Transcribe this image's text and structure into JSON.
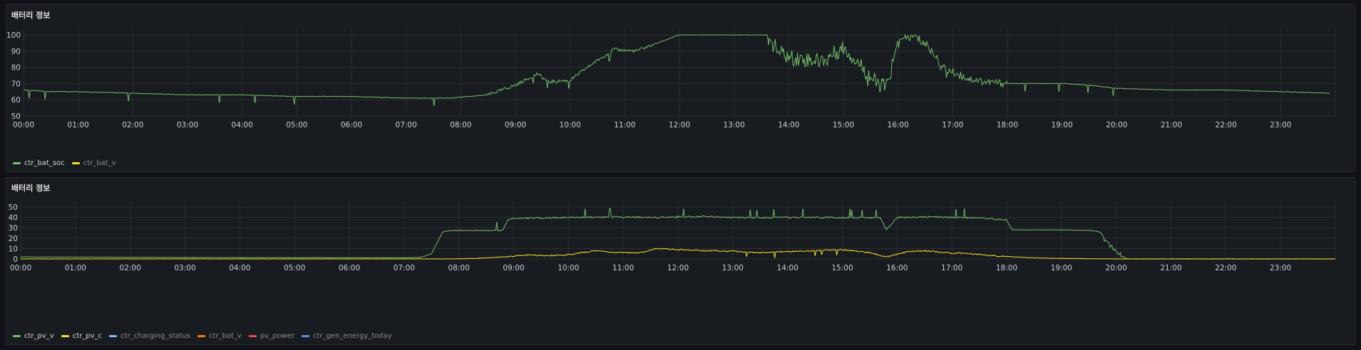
{
  "panels": [
    {
      "title": "배터리 정보",
      "legend": [
        {
          "label": "ctr_bat_soc",
          "color": "#73bf69",
          "active": true
        },
        {
          "label": "ctr_bat_v",
          "color": "#fade2a",
          "active": false
        }
      ]
    },
    {
      "title": "배터리 정보",
      "legend": [
        {
          "label": "ctr_pv_v",
          "color": "#73bf69",
          "active": true
        },
        {
          "label": "ctr_pv_c",
          "color": "#fade2a",
          "active": true
        },
        {
          "label": "ctr_charging_status",
          "color": "#8ab8ff",
          "active": false
        },
        {
          "label": "ctr_bat_v",
          "color": "#ff780a",
          "active": false
        },
        {
          "label": "pv_power",
          "color": "#f2495c",
          "active": false
        },
        {
          "label": "ctr_gen_energy_today",
          "color": "#5794f2",
          "active": false
        }
      ]
    }
  ],
  "chart_data": [
    {
      "type": "line",
      "title": "배터리 정보",
      "xlabel": "",
      "ylabel": "",
      "x_ticks": [
        "00:00",
        "01:00",
        "02:00",
        "03:00",
        "04:00",
        "05:00",
        "06:00",
        "07:00",
        "08:00",
        "09:00",
        "10:00",
        "11:00",
        "12:00",
        "13:00",
        "14:00",
        "15:00",
        "16:00",
        "17:00",
        "18:00",
        "19:00",
        "20:00",
        "21:00",
        "22:00",
        "23:00"
      ],
      "xlim": [
        0,
        24
      ],
      "y_ticks": [
        50,
        60,
        70,
        80,
        90,
        100
      ],
      "ylim": [
        48,
        103
      ],
      "grid": true,
      "legend_position": "bottom-left",
      "series": [
        {
          "name": "ctr_bat_soc",
          "color": "#73bf69",
          "x": [
            0,
            0.5,
            1,
            2,
            3,
            4,
            5,
            6,
            7,
            7.8,
            8.5,
            9,
            9.4,
            9.6,
            10,
            10.4,
            10.8,
            11.2,
            11.6,
            12,
            13,
            13.6,
            13.8,
            14,
            14.3,
            14.6,
            15,
            15.3,
            15.6,
            15.8,
            16,
            16.3,
            16.6,
            16.8,
            17,
            17.3,
            17.6,
            18,
            18.5,
            19,
            19.5,
            20,
            21,
            22,
            23,
            23.9
          ],
          "y": [
            66,
            65,
            65,
            64,
            63,
            63,
            62,
            62,
            61,
            61,
            63,
            69,
            76,
            71,
            72,
            82,
            91,
            90,
            95,
            100,
            100,
            100,
            90,
            86,
            85,
            84,
            92,
            82,
            70,
            68,
            97,
            99,
            92,
            80,
            77,
            73,
            71,
            70,
            70,
            70,
            69,
            67,
            66,
            66,
            65,
            64
          ]
        }
      ]
    },
    {
      "type": "line",
      "title": "배터리 정보",
      "xlabel": "",
      "ylabel": "",
      "x_ticks": [
        "00:00",
        "01:00",
        "02:00",
        "03:00",
        "04:00",
        "05:00",
        "06:00",
        "07:00",
        "08:00",
        "09:00",
        "10:00",
        "11:00",
        "12:00",
        "13:00",
        "14:00",
        "15:00",
        "16:00",
        "17:00",
        "18:00",
        "19:00",
        "20:00",
        "21:00",
        "22:00",
        "23:00"
      ],
      "xlim": [
        0,
        24
      ],
      "y_ticks": [
        0,
        10,
        20,
        30,
        40,
        50
      ],
      "ylim": [
        0,
        52
      ],
      "grid": true,
      "legend_position": "bottom-left",
      "series": [
        {
          "name": "ctr_pv_v",
          "color": "#73bf69",
          "x": [
            0,
            1,
            2,
            3,
            4,
            5,
            6,
            7,
            7.3,
            7.5,
            7.6,
            7.7,
            7.8,
            8,
            8.5,
            8.8,
            8.9,
            9,
            10,
            11,
            11.5,
            12,
            12.5,
            13,
            13.5,
            14,
            15,
            15.7,
            15.8,
            16,
            16.5,
            17,
            17.5,
            18,
            18.1,
            18.5,
            19,
            19.5,
            19.7,
            19.8,
            20,
            20.1,
            20.2,
            20.5,
            21,
            22,
            23,
            24
          ],
          "y": [
            2,
            1.8,
            1.6,
            1.5,
            1.4,
            1.3,
            1.2,
            1.2,
            1.5,
            5,
            15,
            26,
            27,
            27.5,
            27.5,
            27.5,
            38,
            39,
            40,
            40.5,
            40,
            40.5,
            41,
            40,
            39.5,
            40,
            40,
            39.5,
            28,
            40,
            40.5,
            40,
            39.5,
            37.5,
            28,
            28,
            28,
            27.5,
            26,
            17,
            8,
            3,
            0,
            0,
            0,
            0,
            0,
            0
          ]
        },
        {
          "name": "ctr_pv_c",
          "color": "#fade2a",
          "x": [
            0,
            7.8,
            8.3,
            8.8,
            9.3,
            9.5,
            10,
            10.5,
            10.9,
            11.3,
            11.6,
            12,
            12.5,
            13,
            13.5,
            14,
            14.5,
            14.9,
            15.2,
            15.5,
            15.8,
            16.2,
            16.5,
            16.9,
            17.3,
            17.8,
            18.5,
            19,
            19.5,
            20,
            24
          ],
          "y": [
            0,
            0,
            0.5,
            2,
            4,
            3,
            4,
            8,
            6,
            6,
            10,
            9,
            8,
            7.5,
            6,
            7,
            8,
            9,
            8,
            6,
            2,
            7,
            8,
            6,
            5,
            3,
            1,
            0.5,
            0.3,
            0,
            0
          ]
        }
      ]
    }
  ]
}
